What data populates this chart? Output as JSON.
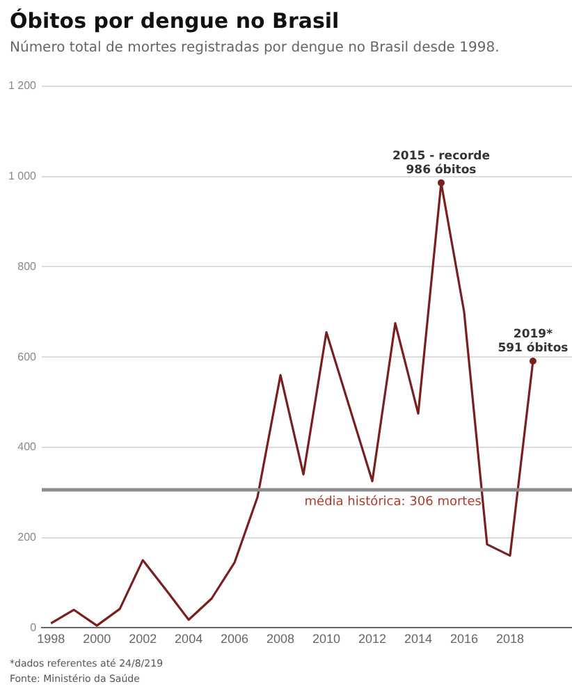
{
  "chart_data": {
    "type": "line",
    "title": "Óbitos por dengue no Brasil",
    "subtitle": "Número total de mortes registradas por dengue no Brasil desde 1998.",
    "x": [
      1998,
      1999,
      2000,
      2001,
      2002,
      2003,
      2004,
      2005,
      2006,
      2007,
      2008,
      2009,
      2010,
      2011,
      2012,
      2013,
      2014,
      2015,
      2016,
      2017,
      2018,
      2019
    ],
    "series": [
      {
        "color": "#7a1f1f",
        "values": [
          10,
          40,
          5,
          42,
          150,
          85,
          18,
          65,
          145,
          290,
          560,
          340,
          655,
          490,
          325,
          675,
          475,
          986,
          700,
          185,
          160,
          591
        ]
      }
    ],
    "xlim": [
      1997.6,
      2020.7
    ],
    "xticks": [
      1998,
      2000,
      2002,
      2004,
      2006,
      2008,
      2010,
      2012,
      2014,
      2016,
      2018
    ],
    "ylim": [
      0,
      1200
    ],
    "yticks": [
      0,
      200,
      400,
      600,
      800,
      {
        "value": 1000,
        "label": "1 000"
      },
      {
        "value": 1200,
        "label": "1 200"
      }
    ],
    "grid": "y",
    "legend": false,
    "ref_lines": [
      {
        "axis": "y",
        "value": 306,
        "label": "média histórica: 306 mortes",
        "color": "#8c8c8c"
      }
    ],
    "annotations": [
      {
        "text": "2015 - recorde\n986 óbitos",
        "x": 2015,
        "y": 986
      },
      {
        "text": "2019*\n591 óbitos",
        "x": 2019,
        "y": 591
      },
      "*dados referentes até 24/8/219",
      "Fonte: Ministério da Saúde"
    ]
  }
}
